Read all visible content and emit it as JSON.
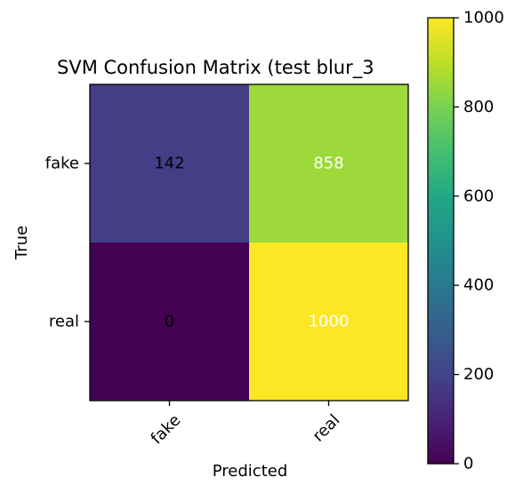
{
  "chart_data": {
    "type": "heatmap",
    "title": "SVM Confusion Matrix (test blur_3",
    "xlabel": "Predicted",
    "ylabel": "True",
    "x_categories": [
      "fake",
      "real"
    ],
    "y_categories": [
      "fake",
      "real"
    ],
    "matrix": [
      [
        142,
        858
      ],
      [
        0,
        1000
      ]
    ],
    "colorbar": {
      "min": 0,
      "max": 1000,
      "ticks": [
        0,
        200,
        400,
        600,
        800,
        1000
      ],
      "colormap": "viridis"
    },
    "colors": {
      "cell_fake_fake": "#433e85",
      "cell_fake_real": "#9dd93b",
      "cell_real_fake": "#440154",
      "cell_real_real": "#fde725",
      "text_dark": "#000000",
      "text_light": "#ffffff"
    }
  }
}
